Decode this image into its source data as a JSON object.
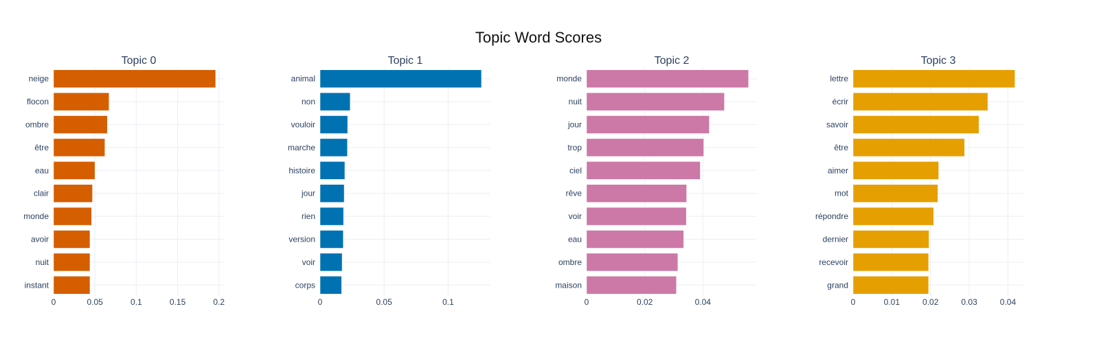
{
  "title": "Topic Word Scores",
  "chart_data": [
    {
      "type": "bar",
      "orientation": "horizontal",
      "title": "Topic 0",
      "color": "#D55E00",
      "categories": [
        "neige",
        "flocon",
        "ombre",
        "être",
        "eau",
        "clair",
        "monde",
        "avoir",
        "nuit",
        "instant"
      ],
      "values": [
        0.196,
        0.067,
        0.065,
        0.062,
        0.05,
        0.047,
        0.046,
        0.044,
        0.044,
        0.044
      ],
      "xlim": [
        0,
        0.206
      ],
      "xticks": [
        0,
        0.05,
        0.1,
        0.15,
        0.2
      ],
      "xtick_labels": [
        "0",
        "0.05",
        "0.1",
        "0.15",
        "0.2"
      ],
      "grid": true
    },
    {
      "type": "bar",
      "orientation": "horizontal",
      "title": "Topic 1",
      "color": "#0072B2",
      "categories": [
        "animal",
        "non",
        "vouloir",
        "marche",
        "histoire",
        "jour",
        "rien",
        "version",
        "voir",
        "corps"
      ],
      "values": [
        0.126,
        0.0235,
        0.0215,
        0.0213,
        0.0193,
        0.0188,
        0.0183,
        0.0181,
        0.0172,
        0.0168
      ],
      "xlim": [
        0,
        0.133
      ],
      "xticks": [
        0,
        0.05,
        0.1
      ],
      "xtick_labels": [
        "0",
        "0.05",
        "0.1"
      ],
      "grid": true
    },
    {
      "type": "bar",
      "orientation": "horizontal",
      "title": "Topic 2",
      "color": "#CC79A7",
      "categories": [
        "monde",
        "nuit",
        "jour",
        "trop",
        "ciel",
        "rêve",
        "voir",
        "eau",
        "ombre",
        "maison"
      ],
      "values": [
        0.0557,
        0.0474,
        0.0422,
        0.0403,
        0.0391,
        0.0344,
        0.0343,
        0.0334,
        0.0314,
        0.0309
      ],
      "xlim": [
        0,
        0.0586
      ],
      "xticks": [
        0,
        0.02,
        0.04
      ],
      "xtick_labels": [
        "0",
        "0.02",
        "0.04"
      ],
      "grid": true
    },
    {
      "type": "bar",
      "orientation": "horizontal",
      "title": "Topic 3",
      "color": "#E69F00",
      "categories": [
        "lettre",
        "écrir",
        "savoir",
        "être",
        "aimer",
        "mot",
        "répondre",
        "dernier",
        "recevoir",
        "grand"
      ],
      "values": [
        0.0418,
        0.0348,
        0.0325,
        0.0288,
        0.0221,
        0.0219,
        0.0208,
        0.0196,
        0.0195,
        0.0195
      ],
      "xlim": [
        0,
        0.044
      ],
      "xticks": [
        0,
        0.01,
        0.02,
        0.03,
        0.04
      ],
      "xtick_labels": [
        "0",
        "0.01",
        "0.02",
        "0.03",
        "0.04"
      ],
      "grid": true
    }
  ]
}
